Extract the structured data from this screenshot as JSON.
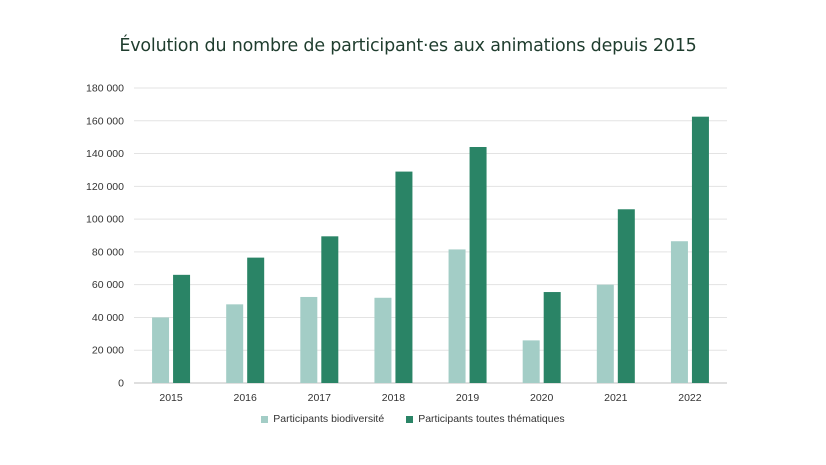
{
  "chart_data": {
    "type": "bar",
    "title": "Évolution du nombre de participant·es aux animations depuis 2015",
    "xlabel": "",
    "ylabel": "",
    "categories": [
      "2015",
      "2016",
      "2017",
      "2018",
      "2019",
      "2020",
      "2021",
      "2022"
    ],
    "series": [
      {
        "name": "Participants biodiversité",
        "color": "#a3cdc6",
        "values": [
          40000,
          48000,
          52500,
          52000,
          81500,
          26000,
          60000,
          86500
        ]
      },
      {
        "name": "Participants toutes thématiques",
        "color": "#2a8466",
        "values": [
          66000,
          76500,
          89500,
          129000,
          144000,
          55500,
          106000,
          162500
        ]
      }
    ],
    "ylim": [
      0,
      180000
    ],
    "yticks": [
      0,
      20000,
      40000,
      60000,
      80000,
      100000,
      120000,
      140000,
      160000,
      180000
    ],
    "ytick_labels": [
      "0",
      "20 000",
      "40 000",
      "60 000",
      "80 000",
      "100 000",
      "120 000",
      "140 000",
      "160 000",
      "180 000"
    ],
    "grid": true,
    "legend_position": "bottom"
  }
}
